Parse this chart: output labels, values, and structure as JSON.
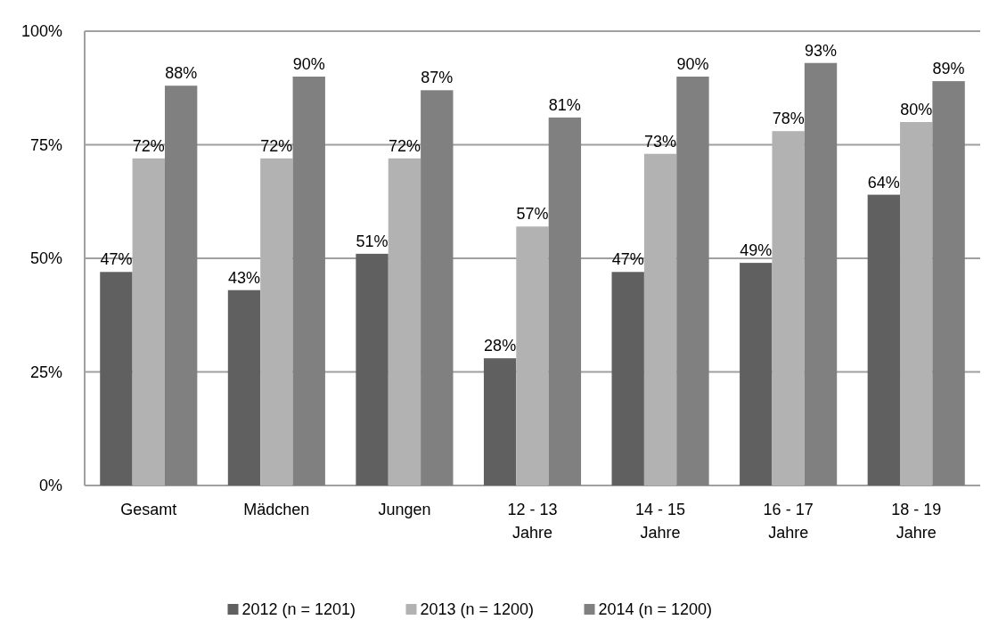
{
  "chart_data": {
    "type": "bar",
    "categories": [
      "Gesamt",
      "Mädchen",
      "Jungen",
      "12 - 13\nJahre",
      "14 - 15\nJahre",
      "16 - 17\nJahre",
      "18 - 19\nJahre"
    ],
    "series": [
      {
        "name": "2012 (n = 1201)",
        "color": "#606060",
        "values": [
          47,
          43,
          51,
          28,
          47,
          49,
          64
        ],
        "value_labels": [
          "47%",
          "43%",
          "51%",
          "28%",
          "47%",
          "49%",
          "64%"
        ]
      },
      {
        "name": "2013 (n = 1200)",
        "color": "#b2b2b2",
        "values": [
          72,
          72,
          72,
          57,
          73,
          78,
          80
        ],
        "value_labels": [
          "72%",
          "72%",
          "72%",
          "57%",
          "73%",
          "78%",
          "80%"
        ]
      },
      {
        "name": "2014 (n = 1200)",
        "color": "#808080",
        "values": [
          88,
          90,
          87,
          81,
          90,
          93,
          89
        ],
        "value_labels": [
          "88%",
          "90%",
          "87%",
          "81%",
          "90%",
          "93%",
          "89%"
        ]
      }
    ],
    "ylim": [
      0,
      100
    ],
    "yticks": [
      {
        "value": 0,
        "label": "0%"
      },
      {
        "value": 25,
        "label": "25%"
      },
      {
        "value": 50,
        "label": "50%"
      },
      {
        "value": 75,
        "label": "75%"
      },
      {
        "value": 100,
        "label": "100%"
      }
    ],
    "grid": "y",
    "legend": "bottom"
  }
}
